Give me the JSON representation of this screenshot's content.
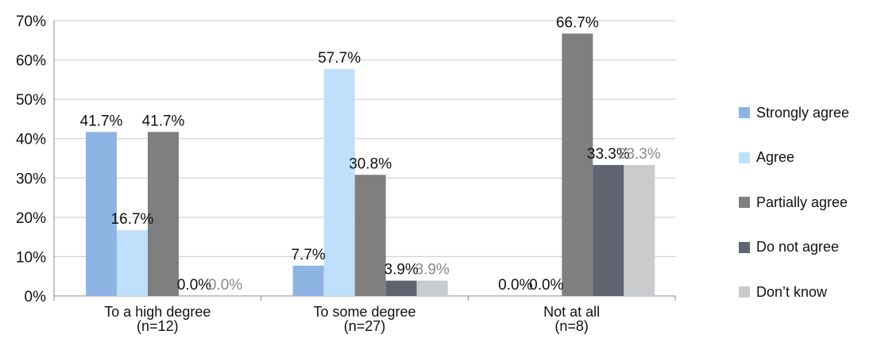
{
  "chart_data": {
    "type": "bar",
    "categories": [
      [
        "To a high degree",
        "(n=12)"
      ],
      [
        "To some degree",
        "(n=27)"
      ],
      [
        "Not at all",
        "(n=8)"
      ]
    ],
    "series": [
      {
        "name": "Strongly agree",
        "values": [
          41.7,
          7.7,
          0.0
        ],
        "labels": [
          "41.7%",
          "7.7%",
          "0.0%"
        ],
        "color": "#8eb4e3",
        "label_color": "#111111"
      },
      {
        "name": "Agree",
        "values": [
          16.7,
          57.7,
          0.0
        ],
        "labels": [
          "16.7%",
          "57.7%",
          "0.0%"
        ],
        "color": "#bfe0fb",
        "label_color": "#111111"
      },
      {
        "name": "Partially agree",
        "values": [
          41.7,
          30.8,
          66.7
        ],
        "labels": [
          "41.7%",
          "30.8%",
          "66.7%"
        ],
        "color": "#7f7f7f",
        "label_color": "#111111"
      },
      {
        "name": "Do not agree",
        "values": [
          0.0,
          3.9,
          33.3
        ],
        "labels": [
          "0.0%",
          "3.9%",
          "33.3%"
        ],
        "color": "#606470",
        "label_color": "#111111"
      },
      {
        "name": "Don’t know",
        "values": [
          0.0,
          3.9,
          33.3
        ],
        "labels": [
          "0.0%",
          "3.9%",
          "33.3%"
        ],
        "color": "#cacbcd",
        "label_color": "#8a8a8a"
      }
    ],
    "ylim": [
      0,
      70
    ],
    "yticks": [
      0,
      10,
      20,
      30,
      40,
      50,
      60,
      70
    ],
    "ytick_labels": [
      "0%",
      "10%",
      "20%",
      "30%",
      "40%",
      "50%",
      "60%",
      "70%"
    ],
    "grid": true,
    "legend_position": "right"
  }
}
